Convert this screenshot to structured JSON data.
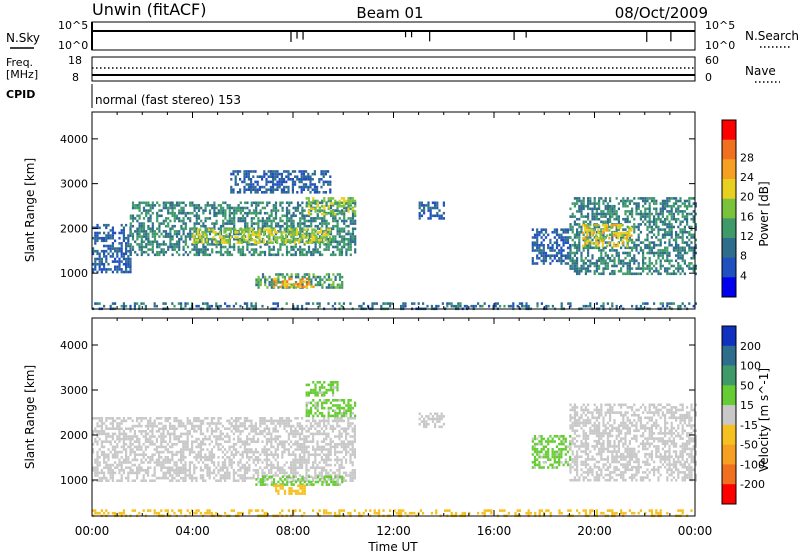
{
  "header": {
    "station": "Unwin (fitACF)",
    "beam": "Beam 01",
    "date": "08/Oct/2009"
  },
  "top_panels": {
    "nsky_label": "N.Sky",
    "nsky_ticks": [
      "10^5",
      "10^0"
    ],
    "nsearch_label": "N.Search",
    "freq_label_line1": "Freq.",
    "freq_label_line2": "[MHz]",
    "freq_ticks": [
      "18",
      "8"
    ],
    "nave_label": "Nave",
    "nave_ticks": [
      "60",
      "0"
    ],
    "cpid_label": "CPID",
    "cpid_text": "normal (fast stereo) 153"
  },
  "chart_data": [
    {
      "type": "heatmap",
      "title": "",
      "xlabel": "Time UT",
      "ylabel": "Slant Range [km]",
      "x_ticks": [
        "00:00",
        "04:00",
        "08:00",
        "12:00",
        "16:00",
        "20:00",
        "00:00"
      ],
      "y_ticks": [
        1000,
        2000,
        3000,
        4000
      ],
      "xlim_hours": [
        0,
        24
      ],
      "ylim": [
        200,
        4600
      ],
      "colorbar": {
        "label": "Power [dB]",
        "ticks": [
          4,
          8,
          12,
          16,
          20,
          24,
          28
        ],
        "colors": [
          "#0000ee",
          "#2050c0",
          "#2e6d8c",
          "#3f9a6a",
          "#7bc23c",
          "#e8d020",
          "#f5a020",
          "#f07020",
          "#ff0000"
        ]
      },
      "regions": [
        {
          "t0": 0.0,
          "t1": 1.5,
          "r0": 1000,
          "r1": 2100,
          "value": 6
        },
        {
          "t0": 1.5,
          "t1": 10.5,
          "r0": 1400,
          "r1": 2600,
          "value": 10
        },
        {
          "t0": 4.0,
          "t1": 9.5,
          "r0": 1700,
          "r1": 2000,
          "value": 18
        },
        {
          "t0": 8.5,
          "t1": 10.5,
          "r0": 2300,
          "r1": 2700,
          "value": 16
        },
        {
          "t0": 6.5,
          "t1": 10.0,
          "r0": 700,
          "r1": 1000,
          "value": 12
        },
        {
          "t0": 7.2,
          "t1": 8.8,
          "r0": 700,
          "r1": 900,
          "value": 24
        },
        {
          "t0": 5.5,
          "t1": 9.5,
          "r0": 2800,
          "r1": 3300,
          "value": 6
        },
        {
          "t0": 13.0,
          "t1": 14.0,
          "r0": 2200,
          "r1": 2600,
          "value": 6
        },
        {
          "t0": 17.5,
          "t1": 19.0,
          "r0": 1200,
          "r1": 2000,
          "value": 6
        },
        {
          "t0": 19.0,
          "t1": 24.0,
          "r0": 1000,
          "r1": 2700,
          "value": 10
        },
        {
          "t0": 19.5,
          "t1": 21.5,
          "r0": 1600,
          "r1": 2100,
          "value": 20
        },
        {
          "t0": 0.0,
          "t1": 24.0,
          "r0": 200,
          "r1": 350,
          "value": 8
        }
      ]
    },
    {
      "type": "heatmap",
      "title": "",
      "xlabel": "Time UT",
      "ylabel": "Slant Range [km]",
      "x_ticks": [
        "00:00",
        "04:00",
        "08:00",
        "12:00",
        "16:00",
        "20:00",
        "00:00"
      ],
      "y_ticks": [
        1000,
        2000,
        3000,
        4000
      ],
      "xlim_hours": [
        0,
        24
      ],
      "ylim": [
        200,
        4600
      ],
      "colorbar": {
        "label": "Velocity [m s^-1]",
        "ticks": [
          "200",
          "100",
          "50",
          "15",
          "-15",
          "-50",
          "-100",
          "-200"
        ],
        "colors": [
          "#1030c0",
          "#2e6d8c",
          "#3f9a6a",
          "#66cc33",
          "#c8c8c8",
          "#f5c020",
          "#f5a020",
          "#f07020",
          "#ff0000"
        ]
      },
      "regions": [
        {
          "t0": 0.0,
          "t1": 10.5,
          "r0": 1000,
          "r1": 2400,
          "value": 0
        },
        {
          "t0": 8.5,
          "t1": 10.5,
          "r0": 2400,
          "r1": 2800,
          "value": 40
        },
        {
          "t0": 6.5,
          "t1": 10.0,
          "r0": 900,
          "r1": 1100,
          "value": 40
        },
        {
          "t0": 7.2,
          "t1": 8.5,
          "r0": 700,
          "r1": 900,
          "value": -40
        },
        {
          "t0": 8.5,
          "t1": 9.8,
          "r0": 2900,
          "r1": 3200,
          "value": 40
        },
        {
          "t0": 13.0,
          "t1": 14.0,
          "r0": 2200,
          "r1": 2500,
          "value": 0
        },
        {
          "t0": 17.5,
          "t1": 19.0,
          "r0": 1300,
          "r1": 2000,
          "value": 40
        },
        {
          "t0": 19.0,
          "t1": 24.0,
          "r0": 1000,
          "r1": 2700,
          "value": 0
        },
        {
          "t0": 0.0,
          "t1": 24.0,
          "r0": 200,
          "r1": 350,
          "value": -40
        }
      ]
    }
  ]
}
